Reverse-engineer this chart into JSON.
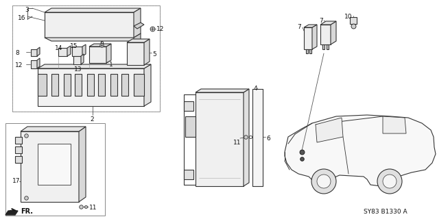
{
  "bg_color": "#ffffff",
  "diagram_code": "SY83 B1330 A",
  "lc": "#333333",
  "lc2": "#555555",
  "fig_w": 6.37,
  "fig_h": 3.2,
  "dpi": 100
}
